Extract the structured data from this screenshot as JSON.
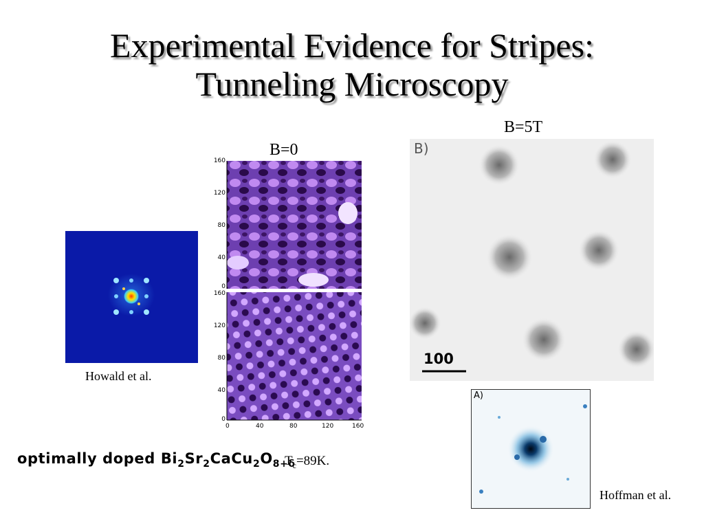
{
  "slide": {
    "title_line1": "Experimental Evidence for Stripes:",
    "title_line2": "Tunneling Microscopy"
  },
  "labels": {
    "b0": "B=0",
    "b5t": "B=5T",
    "howald": "Howald et al.",
    "hoffman": "Hoffman et al."
  },
  "stm_panel": {
    "y_ticks": [
      "160",
      "120",
      "80",
      "40",
      "0"
    ],
    "x_ticks": [
      "0",
      "40",
      "80",
      "120",
      "160"
    ]
  },
  "panel_b": {
    "tag": "B)",
    "scale": "100"
  },
  "panel_a": {
    "tag": "A)"
  },
  "caption": {
    "prefix": "optimally doped Bi",
    "s1": "2",
    "t1": "Sr",
    "s2": "2",
    "t2": "CaCu",
    "s3": "2",
    "t3": "O",
    "s4": "8+δ",
    "tc_main": "T",
    "tc_sub": "c",
    "tc_val": "=89K."
  }
}
